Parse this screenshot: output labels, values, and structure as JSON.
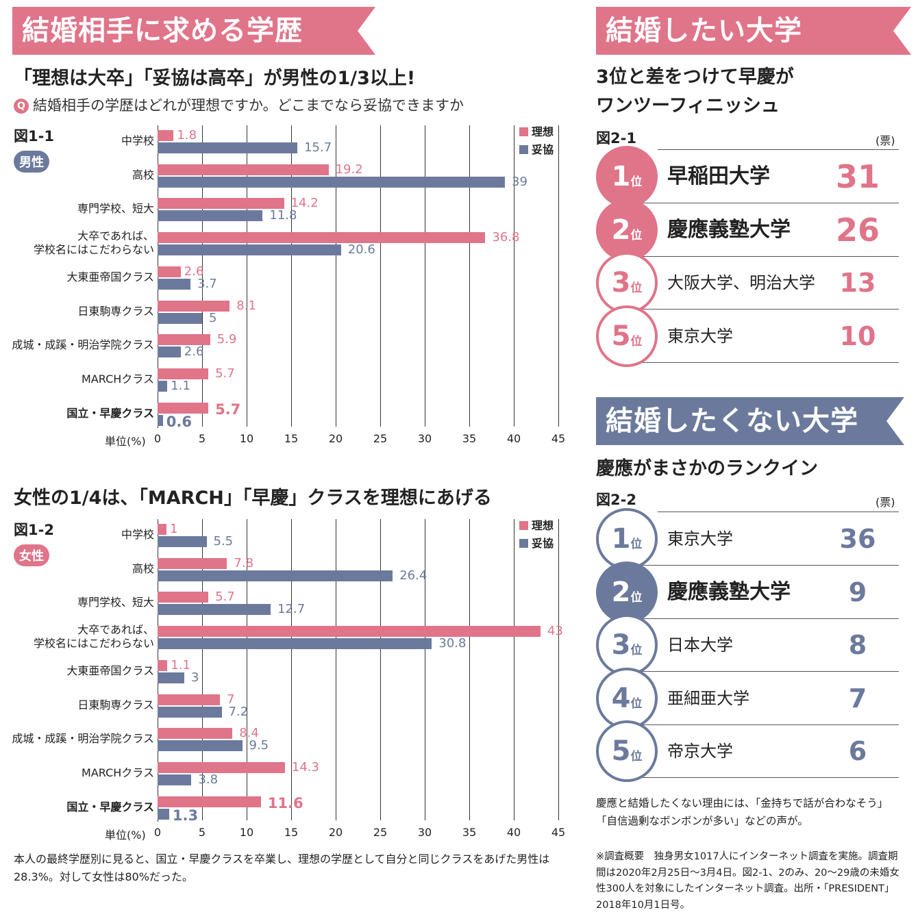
{
  "left": {
    "banner": "結婚相手に求める学歴",
    "headline1": "「理想は大卒」「妥協は高卒」が男性の1/3以上!",
    "q_mark": "Q",
    "question": "結婚相手の学歴はどれが理想ですか。どこまでなら妥協できますか",
    "headline2": "女性の1/4は、「MARCH」「早慶」クラスを理想にあげる",
    "footnote": "本人の最終学歴別に見ると、国立・早慶クラスを卒業し、理想の学歴として自分と同じクラスをあげた男性は28.3%。対して女性は80%だった。"
  },
  "chart_data": [
    {
      "type": "bar",
      "orientation": "horizontal",
      "figure": "図1-1",
      "group": "男性",
      "unit_label": "単位(%)",
      "categories": [
        "中学校",
        "高校",
        "専門学校、短大",
        "大卒であれば、\n学校名にはこだわらない",
        "大東亜帝国クラス",
        "日東駒専クラス",
        "成城・成蹊・明治学院クラス",
        "MARCHクラス",
        "国立・早慶クラス"
      ],
      "series": [
        {
          "name": "理想",
          "color": "#e07489",
          "values": [
            1.8,
            19.2,
            14.2,
            36.8,
            2.6,
            8.1,
            5.9,
            5.7,
            5.7
          ]
        },
        {
          "name": "妥協",
          "color": "#6b7a9c",
          "values": [
            15.7,
            39,
            11.8,
            20.6,
            3.7,
            5,
            2.6,
            1.1,
            0.6
          ]
        }
      ],
      "xlim": [
        0,
        45
      ],
      "xticks": [
        0,
        5,
        10,
        15,
        20,
        25,
        30,
        35,
        40,
        45
      ],
      "grid": true,
      "legend": "top-right"
    },
    {
      "type": "bar",
      "orientation": "horizontal",
      "figure": "図1-2",
      "group": "女性",
      "unit_label": "単位(%)",
      "categories": [
        "中学校",
        "高校",
        "専門学校、短大",
        "大卒であれば、\n学校名にはこだわらない",
        "大東亜帝国クラス",
        "日東駒専クラス",
        "成城・成蹊・明治学院クラス",
        "MARCHクラス",
        "国立・早慶クラス"
      ],
      "series": [
        {
          "name": "理想",
          "color": "#e07489",
          "values": [
            1,
            7.8,
            5.7,
            43,
            1.1,
            7,
            8.4,
            14.3,
            11.6
          ]
        },
        {
          "name": "妥協",
          "color": "#6b7a9c",
          "values": [
            5.5,
            26.4,
            12.7,
            30.8,
            3,
            7.2,
            9.5,
            3.8,
            1.3
          ]
        }
      ],
      "xlim": [
        0,
        45
      ],
      "xticks": [
        0,
        5,
        10,
        15,
        20,
        25,
        30,
        35,
        40,
        45
      ],
      "grid": true,
      "legend": "top-right"
    }
  ],
  "right": {
    "want": {
      "banner": "結婚したい大学",
      "headline": "3位と差をつけて早慶が\nワンツーフィニッシュ",
      "figure": "図2-1",
      "unit": "(票)",
      "color": "#e07489",
      "items": [
        {
          "rank": "1",
          "suffix": "位",
          "name": "早稲田大学",
          "count": "31",
          "highlight": true
        },
        {
          "rank": "2",
          "suffix": "位",
          "name": "慶應義塾大学",
          "count": "26",
          "highlight": true
        },
        {
          "rank": "3",
          "suffix": "位",
          "name": "大阪大学、明治大学",
          "count": "13",
          "highlight": false
        },
        {
          "rank": "5",
          "suffix": "位",
          "name": "東京大学",
          "count": "10",
          "highlight": false
        }
      ]
    },
    "not_want": {
      "banner": "結婚したくない大学",
      "headline": "慶應がまさかのランクイン",
      "figure": "図2-2",
      "unit": "(票)",
      "color": "#6b7a9c",
      "items": [
        {
          "rank": "1",
          "suffix": "位",
          "name": "東京大学",
          "count": "36",
          "highlight": false
        },
        {
          "rank": "2",
          "suffix": "位",
          "name": "慶應義塾大学",
          "count": "9",
          "highlight": true
        },
        {
          "rank": "3",
          "suffix": "位",
          "name": "日本大学",
          "count": "8",
          "highlight": false
        },
        {
          "rank": "4",
          "suffix": "位",
          "name": "亜細亜大学",
          "count": "7",
          "highlight": false
        },
        {
          "rank": "5",
          "suffix": "位",
          "name": "帝京大学",
          "count": "6",
          "highlight": false
        }
      ]
    },
    "comment": "慶應と結婚したくない理由には、「金持ちで話が合わなそう」「自信過剰なボンボンが多い」などの声が。",
    "survey": "※調査概要　独身男女1017人にインターネット調査を実施。調査期間は2020年2月25日～3月4日。図2-1、2のみ、20～29歳の未婚女性300人を対象にしたインターネット調査。出所・「PRESIDENT」2018年10月1日号。"
  }
}
